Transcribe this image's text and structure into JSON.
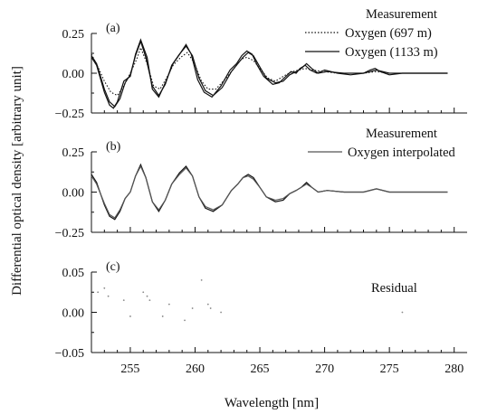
{
  "chart_data": {
    "type": "line",
    "xlabel": "Wavelength [nm]",
    "ylabel": "Differential optical density [arbitrary unit]",
    "xlim": [
      252,
      281
    ],
    "x_ticks": [
      "255",
      "260",
      "265",
      "270",
      "275",
      "280"
    ],
    "x_tick_values": [
      255,
      260,
      265,
      270,
      275,
      280
    ],
    "panels": [
      {
        "label": "(a)",
        "ylim": [
          -0.25,
          0.25
        ],
        "y_ticks": [
          "0.25",
          "0.00",
          "−0.25"
        ],
        "y_tick_values": [
          0.25,
          0.0,
          -0.25
        ],
        "legend": [
          "Measurement",
          "Oxygen (697 m)",
          "Oxygen (1133 m)"
        ],
        "series": [
          {
            "name": "Measurement",
            "style": "solid",
            "color": "#111111",
            "x": [
              252.0,
              252.4,
              253.0,
              253.4,
              253.7,
              254.0,
              254.5,
              255.0,
              255.4,
              255.8,
              256.3,
              256.7,
              257.2,
              257.7,
              258.3,
              258.9,
              259.3,
              259.7,
              260.2,
              260.7,
              261.3,
              262.0,
              262.7,
              263.2,
              263.6,
              264.0,
              264.4,
              264.8,
              265.3,
              266.0,
              266.5,
              267.0,
              267.4,
              267.8,
              268.1,
              268.5,
              268.9,
              269.4,
              270.0,
              271.0,
              272.0,
              273.0,
              273.5,
              273.9,
              274.3,
              275.0,
              276.0,
              277.0,
              278.0,
              279.5
            ],
            "y": [
              0.1,
              0.05,
              -0.12,
              -0.2,
              -0.22,
              -0.18,
              -0.05,
              -0.02,
              0.12,
              0.21,
              0.1,
              -0.1,
              -0.15,
              -0.06,
              0.06,
              0.13,
              0.18,
              0.12,
              -0.04,
              -0.12,
              -0.15,
              -0.08,
              0.02,
              0.06,
              0.11,
              0.14,
              0.12,
              0.05,
              -0.02,
              -0.07,
              -0.06,
              -0.02,
              0.01,
              0.0,
              0.03,
              0.05,
              0.02,
              0.0,
              0.02,
              0.0,
              -0.01,
              0.0,
              0.02,
              0.03,
              0.01,
              -0.01,
              0.0,
              0.0,
              0.0,
              0.0
            ]
          },
          {
            "name": "Oxygen (697 m)",
            "style": "dotted",
            "color": "#111111",
            "x": [
              252.0,
              252.5,
              253.0,
              253.5,
              254.0,
              254.5,
              255.0,
              255.5,
              255.8,
              256.3,
              256.8,
              257.3,
              257.8,
              258.3,
              258.9,
              259.4,
              259.9,
              260.5,
              261.0,
              261.6,
              262.3,
              263.0,
              263.6,
              264.0,
              264.5,
              265.0,
              265.6,
              266.2,
              267.0,
              267.5,
              268.0,
              268.5,
              269.0,
              270.0,
              271.0,
              272.0,
              273.0,
              274.0,
              275.0,
              276.0,
              277.0,
              278.0,
              279.5
            ],
            "y": [
              0.12,
              0.04,
              -0.05,
              -0.12,
              -0.14,
              -0.08,
              0.0,
              0.09,
              0.16,
              0.06,
              -0.08,
              -0.1,
              -0.03,
              0.05,
              0.1,
              0.13,
              0.07,
              -0.05,
              -0.1,
              -0.1,
              -0.04,
              0.03,
              0.09,
              0.1,
              0.08,
              0.03,
              -0.03,
              -0.05,
              -0.01,
              0.01,
              0.02,
              0.03,
              0.02,
              0.01,
              0.0,
              0.0,
              0.0,
              0.01,
              0.0,
              0.0,
              0.0,
              0.0,
              0.0
            ]
          },
          {
            "name": "Oxygen (1133 m)",
            "style": "solid",
            "color": "#111111",
            "x": [
              252.0,
              252.4,
              253.0,
              253.4,
              253.8,
              254.2,
              254.6,
              255.0,
              255.4,
              255.8,
              256.2,
              256.7,
              257.2,
              257.7,
              258.2,
              258.8,
              259.3,
              259.8,
              260.3,
              260.8,
              261.4,
              262.1,
              262.8,
              263.3,
              263.7,
              264.1,
              264.5,
              265.0,
              265.5,
              266.2,
              266.8,
              267.3,
              267.8,
              268.2,
              268.6,
              269.0,
              269.5,
              270.2,
              271.5,
              273.0,
              274.0,
              275.0,
              276.5,
              278.0,
              279.5
            ],
            "y": [
              0.11,
              0.06,
              -0.1,
              -0.18,
              -0.21,
              -0.16,
              -0.06,
              -0.01,
              0.11,
              0.2,
              0.1,
              -0.08,
              -0.14,
              -0.07,
              0.05,
              0.12,
              0.17,
              0.11,
              -0.03,
              -0.11,
              -0.14,
              -0.09,
              0.01,
              0.06,
              0.1,
              0.13,
              0.11,
              0.04,
              -0.03,
              -0.06,
              -0.05,
              -0.01,
              0.01,
              0.03,
              0.06,
              0.03,
              0.0,
              0.01,
              0.0,
              0.0,
              0.02,
              0.0,
              0.0,
              0.0,
              0.0
            ]
          }
        ]
      },
      {
        "label": "(b)",
        "ylim": [
          -0.25,
          0.25
        ],
        "y_ticks": [
          "0.25",
          "0.00",
          "−0.25"
        ],
        "y_tick_values": [
          0.25,
          0.0,
          -0.25
        ],
        "legend": [
          "Measurement",
          "Oxygen interpolated"
        ],
        "series": [
          {
            "name": "Measurement",
            "style": "solid",
            "color": "#111111",
            "x": [
              252.0,
              252.4,
              253.0,
              253.4,
              253.8,
              254.2,
              254.6,
              255.0,
              255.4,
              255.8,
              256.2,
              256.7,
              257.2,
              257.7,
              258.2,
              258.8,
              259.3,
              259.8,
              260.3,
              260.8,
              261.4,
              262.1,
              262.8,
              263.3,
              263.7,
              264.1,
              264.5,
              265.0,
              265.5,
              266.2,
              266.8,
              267.3,
              267.8,
              268.2,
              268.6,
              269.0,
              269.5,
              270.2,
              271.5,
              273.0,
              274.0,
              275.0,
              276.5,
              278.0,
              279.5
            ],
            "y": [
              0.11,
              0.06,
              -0.08,
              -0.15,
              -0.17,
              -0.12,
              -0.04,
              0.0,
              0.1,
              0.17,
              0.09,
              -0.06,
              -0.12,
              -0.05,
              0.05,
              0.12,
              0.16,
              0.1,
              -0.03,
              -0.1,
              -0.12,
              -0.08,
              0.01,
              0.05,
              0.09,
              0.11,
              0.09,
              0.03,
              -0.03,
              -0.06,
              -0.05,
              -0.01,
              0.01,
              0.03,
              0.06,
              0.03,
              0.0,
              0.01,
              0.0,
              0.0,
              0.02,
              0.0,
              0.0,
              0.0,
              0.0
            ]
          },
          {
            "name": "Oxygen interpolated",
            "style": "solid",
            "color": "#555555",
            "x": [
              252.0,
              252.4,
              253.0,
              253.4,
              253.8,
              254.2,
              254.6,
              255.0,
              255.4,
              255.8,
              256.2,
              256.7,
              257.2,
              257.7,
              258.2,
              258.8,
              259.3,
              259.8,
              260.3,
              260.8,
              261.4,
              262.1,
              262.8,
              263.3,
              263.7,
              264.1,
              264.5,
              265.0,
              265.5,
              266.2,
              266.8,
              267.3,
              267.8,
              268.2,
              268.6,
              269.0,
              269.5,
              270.2,
              271.5,
              273.0,
              274.0,
              275.0,
              276.5,
              278.0,
              279.5
            ],
            "y": [
              0.1,
              0.05,
              -0.07,
              -0.14,
              -0.16,
              -0.11,
              -0.04,
              0.0,
              0.1,
              0.16,
              0.09,
              -0.06,
              -0.11,
              -0.05,
              0.05,
              0.11,
              0.15,
              0.1,
              -0.03,
              -0.09,
              -0.11,
              -0.08,
              0.01,
              0.05,
              0.09,
              0.1,
              0.08,
              0.03,
              -0.03,
              -0.05,
              -0.04,
              -0.01,
              0.01,
              0.03,
              0.05,
              0.03,
              0.0,
              0.01,
              0.0,
              0.0,
              0.02,
              0.0,
              0.0,
              0.0,
              0.0
            ]
          }
        ]
      },
      {
        "label": "(c)",
        "ylim": [
          -0.05,
          0.05
        ],
        "y_ticks": [
          "0.05",
          "0.00",
          "−0.05"
        ],
        "y_tick_values": [
          0.05,
          0.0,
          -0.05
        ],
        "legend": [
          "Residual"
        ],
        "series": [
          {
            "name": "Residual",
            "style": "points",
            "color": "#888888",
            "x": [
              252.5,
              253.0,
              253.3,
              254.5,
              255.0,
              256.0,
              256.3,
              256.5,
              257.5,
              258.0,
              259.2,
              259.8,
              260.5,
              261.0,
              261.2,
              262.0,
              276.0
            ],
            "y": [
              0.025,
              0.03,
              0.02,
              0.015,
              -0.005,
              0.025,
              0.02,
              0.015,
              -0.005,
              0.01,
              -0.01,
              0.005,
              0.04,
              0.01,
              0.005,
              0.0,
              0.0
            ]
          }
        ]
      }
    ]
  }
}
